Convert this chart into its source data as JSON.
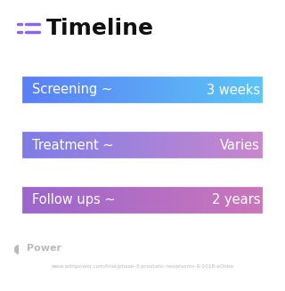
{
  "title": "Timeline",
  "background_color": "#ffffff",
  "rows": [
    {
      "label": "Screening ~",
      "value": "3 weeks",
      "gradient_left": "#5b7cf5",
      "gradient_right": "#5bc8f5"
    },
    {
      "label": "Treatment ~",
      "value": "Varies",
      "gradient_left": "#7b7de8",
      "gradient_right": "#cc88cc"
    },
    {
      "label": "Follow ups ~",
      "value": "2 years",
      "gradient_left": "#9966cc",
      "gradient_right": "#cc77bb"
    }
  ],
  "row_text_color": "#ffffff",
  "title_color": "#111111",
  "title_fontsize": 18,
  "row_label_fontsize": 10.5,
  "row_value_fontsize": 10.5,
  "footer_text": "Power",
  "footer_url": "www.withpower.com/trial/phase-3-prostatic-neoplasms-9-2018-e0bbe",
  "icon_color": "#8866ee",
  "footer_color": "#bbbbbb"
}
